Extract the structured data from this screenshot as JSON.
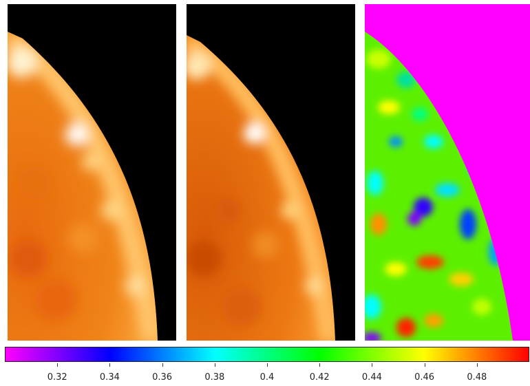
{
  "panels": [
    {
      "name": "intensity-panel-1",
      "colormap": "orange-heat",
      "background": "#000000"
    },
    {
      "name": "intensity-panel-2",
      "colormap": "orange-heat",
      "background": "#000000"
    },
    {
      "name": "ratio-map-panel",
      "colormap": "rainbow",
      "background": "#ff00ff"
    }
  ],
  "colorbar": {
    "min": 0.3,
    "max": 0.5,
    "ticks": [
      "0.32",
      "0.34",
      "0.36",
      "0.38",
      "0.4",
      "0.42",
      "0.44",
      "0.46",
      "0.48"
    ],
    "tick_values": [
      0.32,
      0.34,
      0.36,
      0.38,
      0.4,
      0.42,
      0.44,
      0.46,
      0.48
    ],
    "colors": [
      "#ff00ff",
      "#8000ff",
      "#0000ff",
      "#0080ff",
      "#00ffff",
      "#00ff80",
      "#00ff00",
      "#80ff00",
      "#ffff00",
      "#ff8000",
      "#ff0000"
    ]
  }
}
